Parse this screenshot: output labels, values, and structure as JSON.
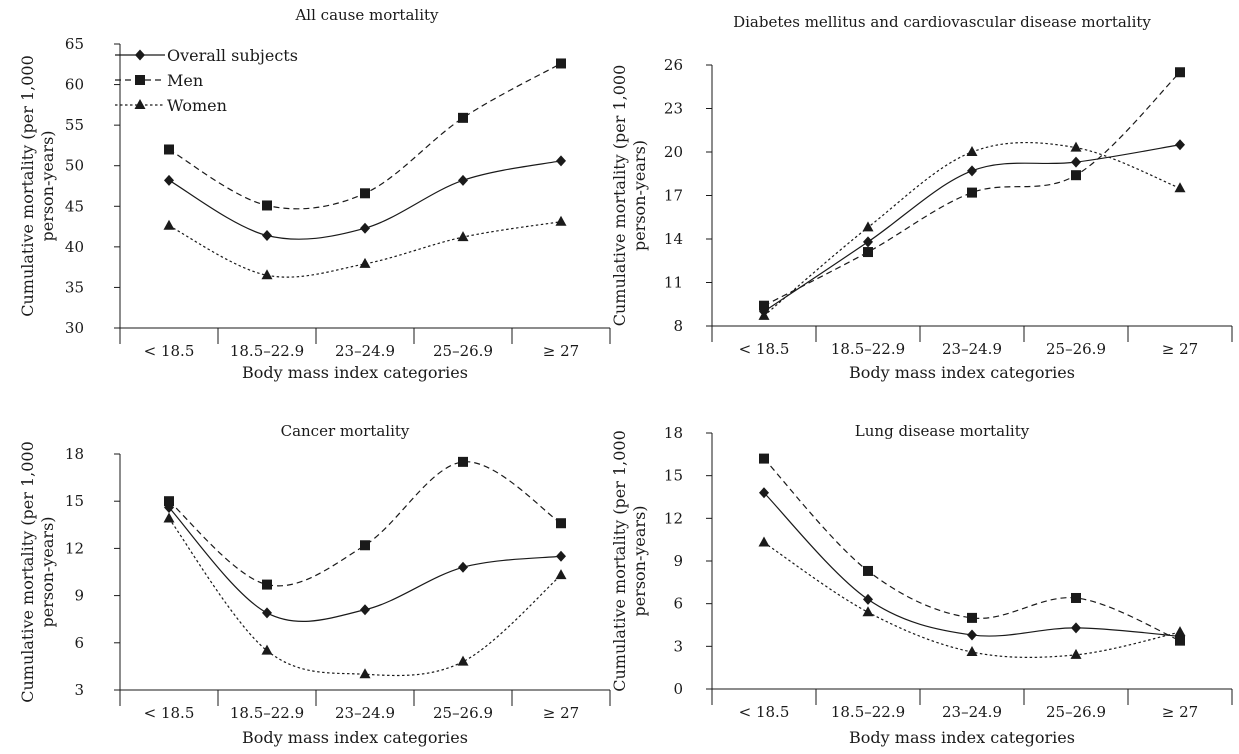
{
  "chart_data": [
    {
      "type": "line",
      "title": "All cause mortality",
      "xlabel": "Body mass index categories",
      "ylabel": "Cumulative mortality (per 1,000 person-years)",
      "categories": [
        "< 18.5",
        "18.5–22.9",
        "23–24.9",
        "25–26.9",
        "≥ 27"
      ],
      "ylim": [
        30,
        65
      ],
      "yticks": [
        30,
        35,
        40,
        45,
        50,
        55,
        60,
        65
      ],
      "legend": "top-left",
      "series": [
        {
          "name": "Overall subjects",
          "marker": "diamond",
          "line": "solid",
          "values": [
            48.2,
            41.4,
            42.3,
            48.2,
            50.6
          ]
        },
        {
          "name": "Men",
          "marker": "square",
          "line": "dashed",
          "values": [
            52.0,
            45.1,
            46.6,
            55.9,
            62.6
          ]
        },
        {
          "name": "Women",
          "marker": "triangle",
          "line": "dotted",
          "values": [
            42.6,
            36.5,
            37.9,
            41.2,
            43.1
          ]
        }
      ]
    },
    {
      "type": "line",
      "title": "Diabetes mellitus and cardiovascular disease mortality",
      "xlabel": "Body mass index categories",
      "ylabel": "Cumulative mortality (per 1,000 person-years)",
      "categories": [
        "< 18.5",
        "18.5–22.9",
        "23–24.9",
        "25–26.9",
        "≥ 27"
      ],
      "ylim": [
        8,
        26
      ],
      "yticks": [
        8,
        11,
        14,
        17,
        20,
        23,
        26
      ],
      "series": [
        {
          "name": "Overall subjects",
          "marker": "diamond",
          "line": "solid",
          "values": [
            9.0,
            13.8,
            18.7,
            19.3,
            20.5
          ]
        },
        {
          "name": "Men",
          "marker": "square",
          "line": "dashed",
          "values": [
            9.4,
            13.1,
            17.2,
            18.4,
            25.5
          ]
        },
        {
          "name": "Women",
          "marker": "triangle",
          "line": "dotted",
          "values": [
            8.7,
            14.8,
            20.0,
            20.3,
            17.5
          ]
        }
      ]
    },
    {
      "type": "line",
      "title": "Cancer mortality",
      "xlabel": "Body mass index categories",
      "ylabel": "Cumulative mortality (per 1,000 person-years)",
      "categories": [
        "< 18.5",
        "18.5–22.9",
        "23–24.9",
        "25–26.9",
        "≥ 27"
      ],
      "ylim": [
        3,
        18
      ],
      "yticks": [
        3,
        6,
        9,
        12,
        15,
        18
      ],
      "series": [
        {
          "name": "Overall subjects",
          "marker": "diamond",
          "line": "solid",
          "values": [
            14.6,
            7.9,
            8.1,
            10.8,
            11.5
          ]
        },
        {
          "name": "Men",
          "marker": "square",
          "line": "dashed",
          "values": [
            15.0,
            9.7,
            12.2,
            17.5,
            13.6
          ]
        },
        {
          "name": "Women",
          "marker": "triangle",
          "line": "dotted",
          "values": [
            13.9,
            5.5,
            4.0,
            4.8,
            10.3
          ]
        }
      ]
    },
    {
      "type": "line",
      "title": "Lung disease mortality",
      "xlabel": "Body mass index categories",
      "ylabel": "Cumulative mortality (per 1,000 person-years)",
      "categories": [
        "< 18.5",
        "18.5–22.9",
        "23–24.9",
        "25–26.9",
        "≥ 27"
      ],
      "ylim": [
        0,
        18
      ],
      "yticks": [
        0,
        3,
        6,
        9,
        12,
        15,
        18
      ],
      "series": [
        {
          "name": "Overall subjects",
          "marker": "diamond",
          "line": "solid",
          "values": [
            13.8,
            6.3,
            3.8,
            4.3,
            3.7
          ]
        },
        {
          "name": "Men",
          "marker": "square",
          "line": "dashed",
          "values": [
            16.2,
            8.3,
            5.0,
            6.4,
            3.4
          ]
        },
        {
          "name": "Women",
          "marker": "triangle",
          "line": "dotted",
          "values": [
            10.3,
            5.4,
            2.6,
            2.4,
            4.0
          ]
        }
      ]
    }
  ]
}
